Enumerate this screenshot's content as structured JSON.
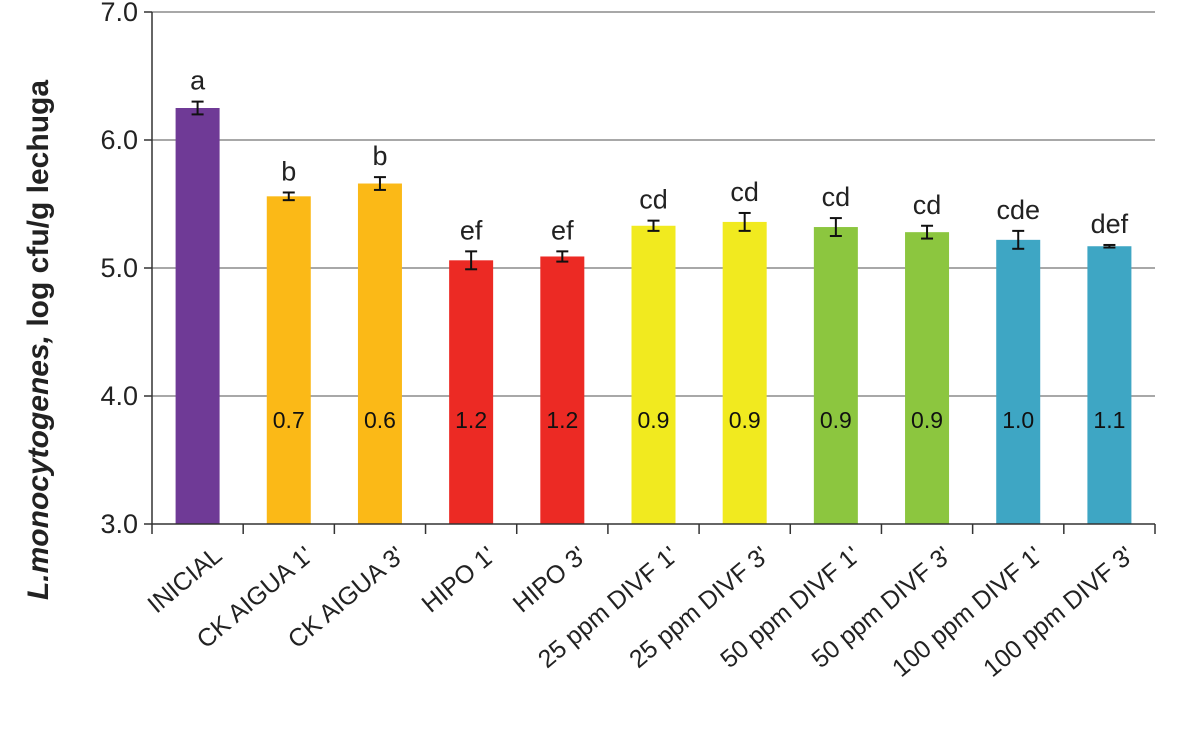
{
  "chart_data": {
    "type": "bar",
    "ylabel_italic": "L.monocytogenes,",
    "ylabel_rest": " log cfu/g lechuga",
    "ylim": [
      3.0,
      7.0
    ],
    "yticks": [
      "3.0",
      "4.0",
      "5.0",
      "6.0",
      "7.0"
    ],
    "grid": true,
    "categories": [
      "INICIAL",
      "CK AIGUA 1'",
      "CK AIGUA 3'",
      "HIPO 1'",
      "HIPO 3'",
      "25 ppm DIVF 1'",
      "25 ppm DIVF 3'",
      "50 ppm DIVF 1'",
      "50 ppm DIVF 3'",
      "100 ppm DIVF 1'",
      "100 ppm DIVF 3'"
    ],
    "values": [
      6.25,
      5.56,
      5.66,
      5.06,
      5.09,
      5.33,
      5.36,
      5.32,
      5.28,
      5.22,
      5.17
    ],
    "errors": [
      0.05,
      0.03,
      0.05,
      0.07,
      0.04,
      0.04,
      0.07,
      0.07,
      0.05,
      0.07,
      0.01
    ],
    "significance": [
      "a",
      "b",
      "b",
      "ef",
      "ef",
      "cd",
      "cd",
      "cd",
      "cd",
      "cde",
      "def"
    ],
    "bar_labels": [
      "",
      "0.7",
      "0.6",
      "1.2",
      "1.2",
      "0.9",
      "0.9",
      "0.9",
      "0.9",
      "1.0",
      "1.1"
    ],
    "colors": [
      "#6f3a96",
      "#fbb917",
      "#fbb917",
      "#ec2a24",
      "#ec2a24",
      "#f1ea1f",
      "#f1ea1f",
      "#8cc63f",
      "#8cc63f",
      "#3ea6c4",
      "#3ea6c4"
    ]
  }
}
